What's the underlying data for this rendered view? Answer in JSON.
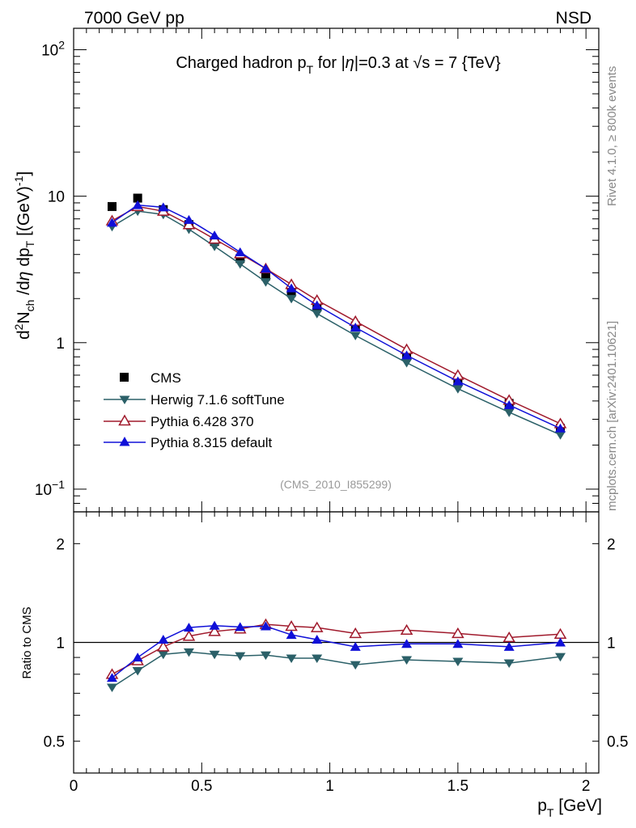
{
  "header": {
    "left": "7000 GeV pp",
    "right": "NSD"
  },
  "side": {
    "rivet": "Rivet 4.1.0, ≥ 800k events",
    "mcplots": "mcplots.cern.ch [arXiv:2401.10621]"
  },
  "chart_data": [
    {
      "type": "line",
      "panel": "main",
      "title": "Charged hadron p_T for |η|=0.3 at √s = 7 {TeV}",
      "analysis_tag": "(CMS_2010_I855299)",
      "xlabel": "p_T [GeV]",
      "ylabel": "d²N_ch/dη dp_T [(GeV)⁻¹]",
      "yscale": "log",
      "xlim": [
        0,
        2.05
      ],
      "ylim": [
        0.07,
        140
      ],
      "ytick_values": [
        0.1,
        1,
        10,
        100
      ],
      "ytick_labels": [
        {
          "base": "10",
          "exp": "−1"
        },
        {
          "base": "1",
          "exp": ""
        },
        {
          "base": "10",
          "exp": ""
        },
        {
          "base": "10",
          "exp": "2"
        }
      ],
      "legend_position": "middle-left",
      "x": [
        0.15,
        0.25,
        0.35,
        0.45,
        0.55,
        0.65,
        0.75,
        0.85,
        0.95,
        1.1,
        1.3,
        1.5,
        1.7,
        1.9
      ],
      "series": [
        {
          "name": "CMS",
          "color": "#000000",
          "marker": "square",
          "line": false,
          "values": [
            8.5,
            9.7,
            8.1,
            6.4,
            4.9,
            3.75,
            2.85,
            2.2,
            1.75,
            1.3,
            0.82,
            0.55,
            0.385,
            0.26
          ]
        },
        {
          "name": "Herwig 7.1.6 softTune",
          "color": "#2b6068",
          "marker": "triangle-down",
          "line": true,
          "values": [
            6.2,
            7.9,
            7.5,
            5.95,
            4.55,
            3.45,
            2.6,
            2.0,
            1.58,
            1.12,
            0.73,
            0.485,
            0.335,
            0.235
          ]
        },
        {
          "name": "Pythia 6.428 370",
          "color": "#a01a2c",
          "marker": "triangle-up-open",
          "line": true,
          "values": [
            6.8,
            8.5,
            7.9,
            6.4,
            5.1,
            4.05,
            3.2,
            2.5,
            1.95,
            1.4,
            0.9,
            0.6,
            0.405,
            0.28
          ]
        },
        {
          "name": "Pythia 8.315 default",
          "color": "#1010d8",
          "marker": "triangle-up",
          "line": true,
          "values": [
            6.6,
            8.7,
            8.4,
            6.9,
            5.4,
            4.15,
            3.2,
            2.35,
            1.8,
            1.27,
            0.82,
            0.545,
            0.375,
            0.26
          ]
        }
      ]
    },
    {
      "type": "line",
      "panel": "ratio",
      "xlabel": "p_T [GeV]",
      "ylabel": "Ratio to CMS",
      "yscale": "log",
      "xlim": [
        0,
        2.05
      ],
      "ylim": [
        0.4,
        2.5
      ],
      "ytick_values": [
        0.5,
        1,
        2
      ],
      "ytick_labels": [
        "0.5",
        "1",
        "2"
      ],
      "reference_line": 1,
      "x": [
        0.15,
        0.25,
        0.35,
        0.45,
        0.55,
        0.65,
        0.75,
        0.85,
        0.95,
        1.1,
        1.3,
        1.5,
        1.7,
        1.9
      ],
      "xtick_values": [
        0,
        0.5,
        1,
        1.5,
        2
      ],
      "xtick_labels": [
        "0",
        "0.5",
        "1",
        "1.5",
        "2"
      ],
      "series": [
        {
          "name": "Herwig 7.1.6 softTune",
          "color": "#2b6068",
          "marker": "triangle-down",
          "values": [
            0.73,
            0.82,
            0.92,
            0.935,
            0.92,
            0.91,
            0.915,
            0.895,
            0.895,
            0.855,
            0.885,
            0.875,
            0.865,
            0.905
          ]
        },
        {
          "name": "Pythia 6.428 370",
          "color": "#a01a2c",
          "marker": "triangle-up-open",
          "values": [
            0.8,
            0.88,
            0.97,
            1.045,
            1.08,
            1.1,
            1.135,
            1.12,
            1.11,
            1.065,
            1.09,
            1.065,
            1.035,
            1.06
          ]
        },
        {
          "name": "Pythia 8.315 default",
          "color": "#1010d8",
          "marker": "triangle-up",
          "values": [
            0.78,
            0.9,
            1.02,
            1.11,
            1.125,
            1.115,
            1.12,
            1.055,
            1.02,
            0.97,
            0.99,
            0.99,
            0.97,
            1.0
          ]
        }
      ]
    }
  ]
}
